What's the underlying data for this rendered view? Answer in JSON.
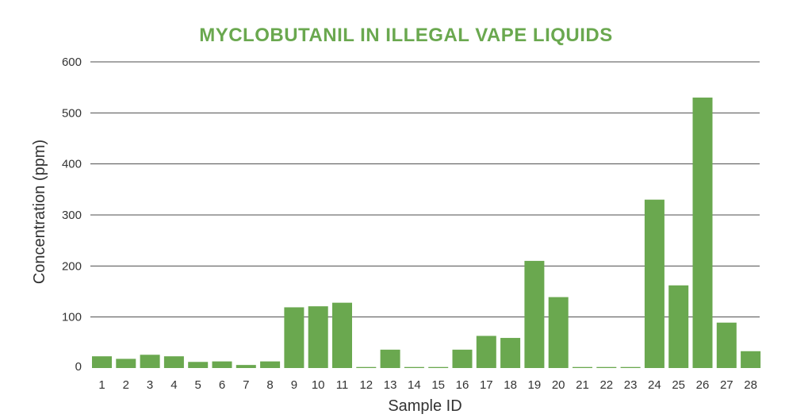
{
  "colors": {
    "bar": "#6aa84f",
    "title": "#6aa84f",
    "grid": "#4d4d4d",
    "text": "#333333"
  },
  "chart_data": {
    "type": "bar",
    "title": "MYCLOBUTANIL IN ILLEGAL VAPE LIQUIDS",
    "xlabel": "Sample ID",
    "ylabel": "Concentration (ppm)",
    "ylim": [
      0,
      600
    ],
    "yticks": [
      0,
      100,
      200,
      300,
      400,
      500,
      600
    ],
    "grid": true,
    "categories": [
      "1",
      "2",
      "3",
      "4",
      "5",
      "6",
      "7",
      "8",
      "9",
      "10",
      "11",
      "12",
      "13",
      "14",
      "15",
      "16",
      "17",
      "18",
      "19",
      "20",
      "21",
      "22",
      "23",
      "24",
      "25",
      "26",
      "27",
      "28"
    ],
    "values": [
      23,
      18,
      26,
      23,
      12,
      13,
      6,
      13,
      119,
      121,
      128,
      2,
      36,
      2,
      2,
      36,
      63,
      59,
      210,
      139,
      2,
      2,
      2,
      330,
      162,
      530,
      89,
      33
    ]
  }
}
